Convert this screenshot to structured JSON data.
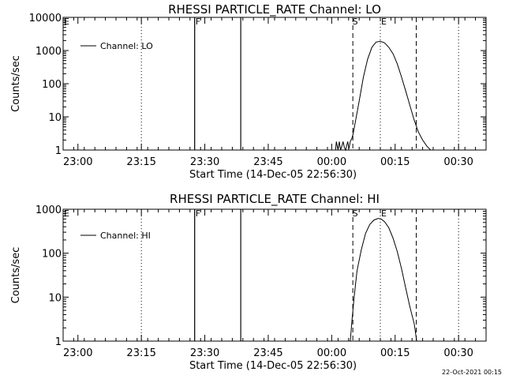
{
  "footer": {
    "timestamp": "22-Oct-2021 00:15"
  },
  "x_tick_labels": [
    "23:00",
    "23:15",
    "23:30",
    "23:45",
    "00:00",
    "00:15",
    "00:30"
  ],
  "chart_data": [
    {
      "type": "line",
      "title": "RHESSI PARTICLE_RATE Channel: LO",
      "xlabel": "Start Time (14-Dec-05 22:56:30)",
      "ylabel": "Counts/sec",
      "xaxis_unit": "minutes from 22:56:30",
      "xlim": [
        0,
        100
      ],
      "ylim": [
        1,
        10000
      ],
      "yscale": "log",
      "yticks": [
        1,
        10,
        100,
        1000,
        10000
      ],
      "ytick_labels": [
        "1",
        "10",
        "100",
        "1000",
        "10000"
      ],
      "legend": {
        "label": "Channel: LO",
        "placement": "top-left"
      },
      "series": [
        {
          "name": "Channel: LO",
          "x": [
            0,
            31.1,
            31.1,
            31.1,
            42.0,
            42.0,
            42.0,
            64.4,
            64.6,
            65.0,
            65.3,
            65.6,
            65.9,
            66.2,
            66.5,
            66.8,
            67.3,
            67.6,
            67.9,
            68.3,
            68.6,
            69.0,
            70.0,
            71.0,
            72.0,
            73.0,
            74.0,
            75.0,
            76.0,
            77.0,
            78.0,
            79.0,
            80.0,
            81.0,
            82.0,
            83.0,
            84.0,
            85.0,
            86.0,
            86.9,
            100
          ],
          "y": [
            1,
            1,
            10000,
            1,
            1,
            10000,
            1,
            1,
            1.8,
            1,
            1.8,
            1,
            1.3,
            1.8,
            1.2,
            1,
            1.8,
            1.1,
            1.8,
            2.3,
            3.2,
            6,
            30,
            160,
            550,
            1250,
            1800,
            1900,
            1700,
            1250,
            800,
            400,
            160,
            60,
            22,
            8,
            3.5,
            2,
            1.3,
            1,
            1
          ]
        }
      ],
      "markers": [
        {
          "label": "F",
          "x": 31.1,
          "style": "solid"
        },
        {
          "label": "",
          "x": 42.0,
          "style": "solid"
        },
        {
          "label": "S",
          "x": 68.5,
          "style": "dashed"
        },
        {
          "label": "E",
          "x": 75.0,
          "style": "dotted"
        },
        {
          "label": "",
          "x": 83.5,
          "style": "dashed"
        },
        {
          "label": "",
          "x": 18.5,
          "style": "dotted"
        },
        {
          "label": "",
          "x": 93.5,
          "style": "dotted"
        }
      ],
      "corner_label": "E"
    },
    {
      "type": "line",
      "title": "RHESSI PARTICLE_RATE Channel: HI",
      "xlabel": "Start Time (14-Dec-05 22:56:30)",
      "ylabel": "Counts/sec",
      "xaxis_unit": "minutes from 22:56:30",
      "xlim": [
        0,
        100
      ],
      "ylim": [
        1,
        1000
      ],
      "yscale": "log",
      "yticks": [
        1,
        10,
        100,
        1000
      ],
      "ytick_labels": [
        "1",
        "10",
        "100",
        "1000"
      ],
      "legend": {
        "label": "Channel: HI",
        "placement": "top-left"
      },
      "series": [
        {
          "name": "Channel: HI",
          "x": [
            0,
            31.1,
            31.1,
            31.1,
            42.0,
            42.0,
            42.0,
            67.9,
            68.3,
            68.8,
            69.5,
            70.5,
            71.5,
            72.5,
            73.5,
            74.5,
            75.2,
            76.0,
            77.0,
            78.0,
            79.0,
            80.0,
            81.0,
            82.0,
            83.0,
            83.6,
            100
          ],
          "y": [
            1,
            1,
            1000,
            1,
            1,
            1000,
            1,
            1,
            3,
            10,
            40,
            120,
            280,
            450,
            570,
            620,
            600,
            520,
            380,
            220,
            110,
            45,
            16,
            6,
            2.5,
            1,
            1
          ]
        }
      ],
      "markers": [
        {
          "label": "F",
          "x": 31.1,
          "style": "solid"
        },
        {
          "label": "",
          "x": 42.0,
          "style": "solid"
        },
        {
          "label": "S",
          "x": 68.5,
          "style": "dashed"
        },
        {
          "label": "E",
          "x": 75.0,
          "style": "dotted"
        },
        {
          "label": "",
          "x": 83.5,
          "style": "dashed"
        },
        {
          "label": "",
          "x": 18.5,
          "style": "dotted"
        },
        {
          "label": "",
          "x": 93.5,
          "style": "dotted"
        }
      ],
      "corner_label": "E"
    }
  ]
}
